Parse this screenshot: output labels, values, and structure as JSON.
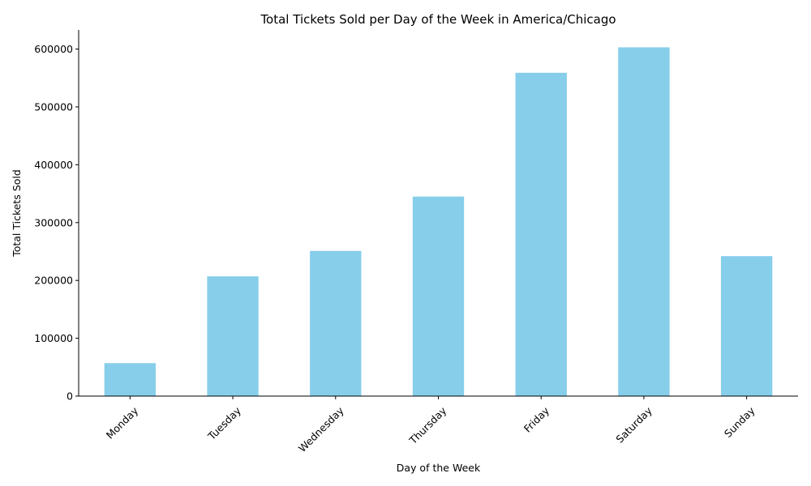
{
  "chart_data": {
    "type": "bar",
    "title": "Total Tickets Sold per Day of the Week in America/Chicago",
    "xlabel": "Day of the Week",
    "ylabel": "Total Tickets Sold",
    "categories": [
      "Monday",
      "Tuesday",
      "Wednesday",
      "Thursday",
      "Friday",
      "Saturday",
      "Sunday"
    ],
    "values": [
      57000,
      207000,
      251000,
      345000,
      559000,
      603000,
      242000
    ],
    "ylim": [
      0,
      633000
    ],
    "yticks": [
      0,
      100000,
      200000,
      300000,
      400000,
      500000,
      600000
    ],
    "ytick_labels": [
      "0",
      "100000",
      "200000",
      "300000",
      "400000",
      "500000",
      "600000"
    ],
    "bar_color": "#87ceeb",
    "grid": false,
    "legend": "none"
  }
}
